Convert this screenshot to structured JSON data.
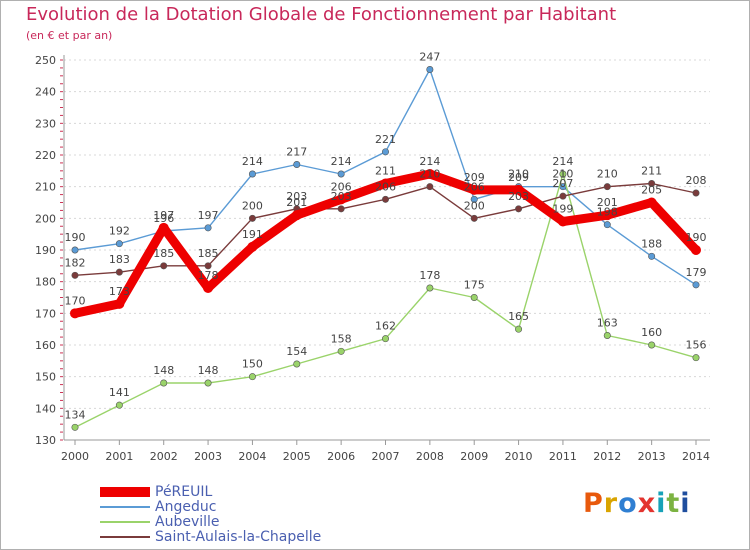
{
  "header": {
    "title": "Evolution de la Dotation Globale de Fonctionnement par Habitant",
    "subtitle": "(en € et par an)"
  },
  "logo": {
    "text": "Proxiti",
    "colors": [
      "#e8590c",
      "#d9a400",
      "#2f7fd2",
      "#e3342f",
      "#17a2b8",
      "#7cb342",
      "#1f4e9e"
    ]
  },
  "chart_data": {
    "type": "line",
    "x": [
      2000,
      2001,
      2002,
      2003,
      2004,
      2005,
      2006,
      2007,
      2008,
      2009,
      2010,
      2011,
      2012,
      2013,
      2014
    ],
    "ylim": [
      130,
      250
    ],
    "yticks": [
      130,
      140,
      150,
      160,
      170,
      180,
      190,
      200,
      210,
      220,
      230,
      240,
      250
    ],
    "grid": "horizontal dashed",
    "legend_position": "bottom-left",
    "series": [
      {
        "name": "PéREUIL",
        "color": "#ee0000",
        "values": [
          170,
          173,
          197,
          178,
          191,
          201,
          206,
          211,
          214,
          209,
          209,
          199,
          201,
          205,
          190
        ],
        "labels": [
          "170",
          "173",
          "197",
          "178",
          "191",
          "201",
          "206",
          "211",
          "214",
          "209",
          "209",
          "199",
          "201",
          "205",
          "190"
        ]
      },
      {
        "name": "Angeduc",
        "color": "#5b9bd5",
        "values": [
          190,
          192,
          196,
          197,
          214,
          217,
          214,
          221,
          247,
          206,
          210,
          210,
          198,
          188,
          179
        ],
        "labels": [
          "190",
          "192",
          "196",
          "197",
          "214",
          "217",
          "214",
          "221",
          "247",
          "206",
          "210",
          "210",
          "198",
          "188",
          "179"
        ]
      },
      {
        "name": "Aubeville",
        "color": "#9ad36a",
        "values": [
          134,
          141,
          148,
          148,
          150,
          154,
          158,
          162,
          178,
          175,
          165,
          214,
          163,
          160,
          156
        ],
        "labels": [
          "134",
          "141",
          "148",
          "148",
          "150",
          "154",
          "158",
          "162",
          "178",
          "175",
          "165",
          "214",
          "163",
          "160",
          "156"
        ]
      },
      {
        "name": "Saint-Aulais-la-Chapelle",
        "color": "#7a3b3b",
        "values": [
          182,
          183,
          185,
          185,
          200,
          203,
          203,
          206,
          210,
          200,
          203,
          207,
          210,
          211,
          208
        ],
        "labels": [
          "182",
          "183",
          "185",
          "185",
          "200",
          "203",
          "203",
          "206",
          "210",
          "200",
          "203",
          "207",
          "210",
          "211",
          "208"
        ]
      }
    ]
  }
}
